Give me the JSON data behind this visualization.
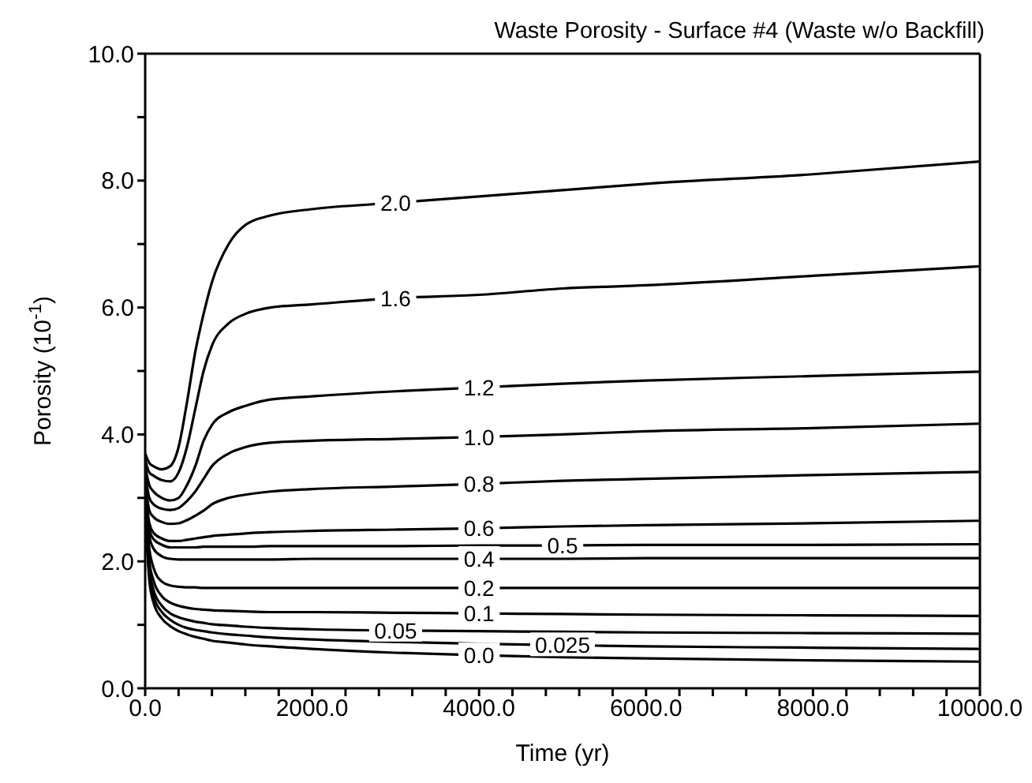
{
  "chart_data": {
    "type": "line",
    "title": "Waste Porosity - Surface #4 (Waste w/o Backfill)",
    "xlabel": "Time (yr)",
    "ylabel": "Porosity (10$^{-1}$)",
    "x": [
      0,
      50,
      100,
      200,
      300,
      400,
      500,
      600,
      700,
      800,
      1000,
      1200,
      1500,
      2000,
      3000,
      4000,
      5000,
      6000,
      8000,
      10000
    ],
    "xlim": [
      0,
      10000
    ],
    "xticks": [
      {
        "value": 0,
        "label": "0.0"
      },
      {
        "value": 400,
        "label": null
      },
      {
        "value": 800,
        "label": null
      },
      {
        "value": 1200,
        "label": null
      },
      {
        "value": 1600,
        "label": null
      },
      {
        "value": 2000,
        "label": "2000.0"
      },
      {
        "value": 2400,
        "label": null
      },
      {
        "value": 2800,
        "label": null
      },
      {
        "value": 3200,
        "label": null
      },
      {
        "value": 3600,
        "label": null
      },
      {
        "value": 4000,
        "label": "4000.0"
      },
      {
        "value": 4400,
        "label": null
      },
      {
        "value": 4800,
        "label": null
      },
      {
        "value": 5200,
        "label": null
      },
      {
        "value": 5600,
        "label": null
      },
      {
        "value": 6000,
        "label": "6000.0"
      },
      {
        "value": 6400,
        "label": null
      },
      {
        "value": 6800,
        "label": null
      },
      {
        "value": 7200,
        "label": null
      },
      {
        "value": 7600,
        "label": null
      },
      {
        "value": 8000,
        "label": "8000.0"
      },
      {
        "value": 8400,
        "label": null
      },
      {
        "value": 8800,
        "label": null
      },
      {
        "value": 9200,
        "label": null
      },
      {
        "value": 9600,
        "label": null
      },
      {
        "value": 10000,
        "label": "10000.0"
      }
    ],
    "ylim": [
      0,
      10
    ],
    "yticks": [
      {
        "value": 0,
        "label": "0.0"
      },
      {
        "value": 1,
        "label": null
      },
      {
        "value": 2,
        "label": "2.0"
      },
      {
        "value": 3,
        "label": null
      },
      {
        "value": 4,
        "label": "4.0"
      },
      {
        "value": 5,
        "label": null
      },
      {
        "value": 6,
        "label": "6.0"
      },
      {
        "value": 7,
        "label": null
      },
      {
        "value": 8,
        "label": "8.0"
      },
      {
        "value": 9,
        "label": null
      },
      {
        "value": 10,
        "label": "10.0"
      }
    ],
    "grid": false,
    "legend": false,
    "marker": "none",
    "line_style": "solid",
    "series": [
      {
        "name": "2.0",
        "color": "#000000",
        "values": [
          3.7,
          3.55,
          3.5,
          3.45,
          3.5,
          3.8,
          4.5,
          5.3,
          5.9,
          6.4,
          7.0,
          7.3,
          7.45,
          7.55,
          7.65,
          7.75,
          7.85,
          7.95,
          8.1,
          8.3
        ]
      },
      {
        "name": "1.6",
        "color": "#000000",
        "values": [
          3.6,
          3.4,
          3.35,
          3.28,
          3.26,
          3.4,
          3.8,
          4.4,
          5.0,
          5.4,
          5.75,
          5.9,
          6.0,
          6.05,
          6.15,
          6.2,
          6.3,
          6.35,
          6.5,
          6.65
        ]
      },
      {
        "name": "1.2",
        "color": "#000000",
        "values": [
          3.5,
          3.2,
          3.1,
          3.0,
          2.96,
          3.0,
          3.2,
          3.5,
          3.9,
          4.15,
          4.35,
          4.45,
          4.55,
          4.6,
          4.68,
          4.74,
          4.8,
          4.85,
          4.92,
          4.99
        ]
      },
      {
        "name": "1.0",
        "color": "#000000",
        "values": [
          3.4,
          3.0,
          2.9,
          2.83,
          2.81,
          2.84,
          2.95,
          3.1,
          3.3,
          3.5,
          3.7,
          3.8,
          3.87,
          3.9,
          3.93,
          3.96,
          4.0,
          4.05,
          4.1,
          4.17
        ]
      },
      {
        "name": "0.8",
        "color": "#000000",
        "values": [
          3.3,
          2.8,
          2.7,
          2.62,
          2.59,
          2.6,
          2.65,
          2.72,
          2.8,
          2.9,
          3.0,
          3.05,
          3.1,
          3.14,
          3.18,
          3.22,
          3.27,
          3.3,
          3.36,
          3.41
        ]
      },
      {
        "name": "0.6",
        "color": "#000000",
        "values": [
          3.2,
          2.6,
          2.45,
          2.36,
          2.32,
          2.32,
          2.34,
          2.36,
          2.38,
          2.4,
          2.42,
          2.44,
          2.46,
          2.48,
          2.5,
          2.52,
          2.55,
          2.57,
          2.6,
          2.64
        ]
      },
      {
        "name": "0.5",
        "color": "#000000",
        "values": [
          3.1,
          2.5,
          2.35,
          2.26,
          2.22,
          2.22,
          2.22,
          2.22,
          2.23,
          2.23,
          2.23,
          2.23,
          2.24,
          2.24,
          2.24,
          2.25,
          2.25,
          2.26,
          2.26,
          2.27
        ]
      },
      {
        "name": "0.4",
        "color": "#000000",
        "values": [
          3.0,
          2.4,
          2.2,
          2.08,
          2.04,
          2.03,
          2.03,
          2.03,
          2.03,
          2.03,
          2.03,
          2.03,
          2.03,
          2.04,
          2.04,
          2.04,
          2.04,
          2.05,
          2.05,
          2.05
        ]
      },
      {
        "name": "0.2",
        "color": "#000000",
        "values": [
          3.0,
          2.2,
          1.9,
          1.68,
          1.62,
          1.6,
          1.59,
          1.59,
          1.58,
          1.58,
          1.58,
          1.58,
          1.58,
          1.58,
          1.58,
          1.58,
          1.58,
          1.58,
          1.58,
          1.58
        ]
      },
      {
        "name": "0.1",
        "color": "#000000",
        "values": [
          2.9,
          2.0,
          1.7,
          1.45,
          1.35,
          1.3,
          1.27,
          1.25,
          1.24,
          1.23,
          1.22,
          1.21,
          1.2,
          1.2,
          1.19,
          1.18,
          1.17,
          1.16,
          1.15,
          1.14
        ]
      },
      {
        "name": "0.05",
        "color": "#000000",
        "values": [
          2.9,
          1.9,
          1.55,
          1.3,
          1.18,
          1.12,
          1.08,
          1.05,
          1.03,
          1.01,
          0.99,
          0.97,
          0.95,
          0.93,
          0.91,
          0.9,
          0.89,
          0.88,
          0.87,
          0.86
        ]
      },
      {
        "name": "0.025",
        "color": "#000000",
        "values": [
          2.8,
          1.8,
          1.45,
          1.2,
          1.08,
          1.0,
          0.95,
          0.92,
          0.9,
          0.88,
          0.85,
          0.83,
          0.8,
          0.77,
          0.73,
          0.7,
          0.68,
          0.66,
          0.64,
          0.62
        ]
      },
      {
        "name": "0.0",
        "color": "#000000",
        "values": [
          2.8,
          1.7,
          1.35,
          1.1,
          0.98,
          0.9,
          0.85,
          0.81,
          0.78,
          0.75,
          0.72,
          0.69,
          0.66,
          0.62,
          0.56,
          0.52,
          0.49,
          0.47,
          0.44,
          0.42
        ]
      }
    ]
  }
}
